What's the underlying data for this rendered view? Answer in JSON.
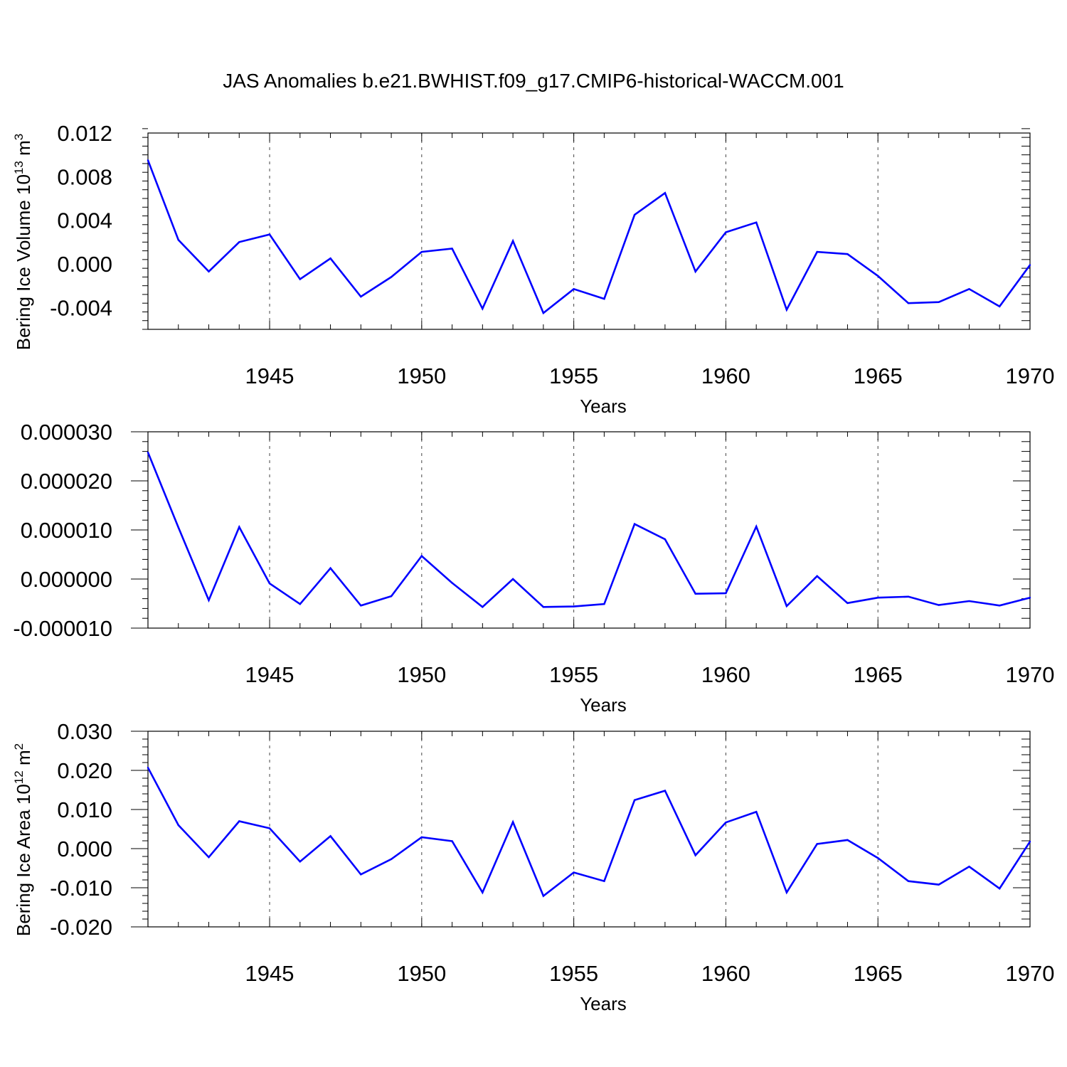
{
  "title": "JAS Anomalies b.e21.BWHIST.f09_g17.CMIP6-historical-WACCM.001",
  "colors": {
    "series": "#0000ff",
    "axis": "#000000",
    "grid": "#444444"
  },
  "chart_data": [
    {
      "type": "line",
      "title": "",
      "xlabel": "Years",
      "ylabel": {
        "text": "Bering Ice Volume 10",
        "exp": "13",
        "unit": " m",
        "unit_exp": "3"
      },
      "x": [
        1941,
        1942,
        1943,
        1944,
        1945,
        1946,
        1947,
        1948,
        1949,
        1950,
        1951,
        1952,
        1953,
        1954,
        1955,
        1956,
        1957,
        1958,
        1959,
        1960,
        1961,
        1962,
        1963,
        1964,
        1965,
        1966,
        1967,
        1968,
        1969,
        1970
      ],
      "series": [
        {
          "values": [
            0.0095,
            0.0022,
            -0.0007,
            0.002,
            0.0027,
            -0.0014,
            0.0005,
            -0.003,
            -0.0012,
            0.0011,
            0.0014,
            -0.0041,
            0.0021,
            -0.0045,
            -0.0023,
            -0.0032,
            0.0045,
            0.0065,
            -0.0007,
            0.0029,
            0.0038,
            -0.0042,
            0.0011,
            0.0009,
            -0.0011,
            -0.0036,
            -0.0035,
            -0.0023,
            -0.0039,
            -0.0001
          ]
        }
      ],
      "xlim": [
        1941,
        1970
      ],
      "ylim": [
        -0.006,
        0.012
      ],
      "xticks": [
        1945,
        1950,
        1955,
        1960,
        1965,
        1970
      ],
      "xtick_labels": [
        "1945",
        "1950",
        "1955",
        "1960",
        "1965",
        "1970"
      ],
      "yticks": [
        -0.004,
        0.0,
        0.004,
        0.008,
        0.012
      ],
      "ytick_labels": [
        "-0.004",
        "0.000",
        "0.004",
        "0.008",
        "0.012"
      ],
      "minor_x_step": 1,
      "minor_y_step": 0.0008,
      "grid": "vertical dashed at major x ticks"
    },
    {
      "type": "line",
      "title": "",
      "xlabel": "Years",
      "ylabel": null,
      "x": [
        1941,
        1942,
        1943,
        1944,
        1945,
        1946,
        1947,
        1948,
        1949,
        1950,
        1951,
        1952,
        1953,
        1954,
        1955,
        1956,
        1957,
        1958,
        1959,
        1960,
        1961,
        1962,
        1963,
        1964,
        1965,
        1966,
        1967,
        1968,
        1969,
        1970
      ],
      "series": [
        {
          "values": [
            2.58e-05,
            1.05e-05,
            -4.3e-06,
            1.06e-05,
            -9e-07,
            -5.1e-06,
            2.2e-06,
            -5.4e-06,
            -3.5e-06,
            4.7e-06,
            -8e-07,
            -5.7e-06,
            0.0,
            -5.7e-06,
            -5.6e-06,
            -5.1e-06,
            1.12e-05,
            8.1e-06,
            -3e-06,
            -2.9e-06,
            1.07e-05,
            -5.5e-06,
            6e-07,
            -4.9e-06,
            -3.8e-06,
            -3.6e-06,
            -5.3e-06,
            -4.5e-06,
            -5.4e-06,
            -3.8e-06
          ]
        }
      ],
      "xlim": [
        1941,
        1970
      ],
      "ylim": [
        -1e-05,
        3e-05
      ],
      "xticks": [
        1945,
        1950,
        1955,
        1960,
        1965,
        1970
      ],
      "xtick_labels": [
        "1945",
        "1950",
        "1955",
        "1960",
        "1965",
        "1970"
      ],
      "yticks": [
        -1e-05,
        0.0,
        1e-05,
        2e-05,
        3e-05
      ],
      "ytick_labels": [
        "-0.000010",
        "0.000000",
        "0.000010",
        "0.000020",
        "0.000030"
      ],
      "minor_x_step": 1,
      "minor_y_step": 2e-06,
      "grid": "vertical dashed at major x ticks"
    },
    {
      "type": "line",
      "title": "",
      "xlabel": "Years",
      "ylabel": {
        "text": "Bering Ice Area 10",
        "exp": "12",
        "unit": " m",
        "unit_exp": "2"
      },
      "x": [
        1941,
        1942,
        1943,
        1944,
        1945,
        1946,
        1947,
        1948,
        1949,
        1950,
        1951,
        1952,
        1953,
        1954,
        1955,
        1956,
        1957,
        1958,
        1959,
        1960,
        1961,
        1962,
        1963,
        1964,
        1965,
        1966,
        1967,
        1968,
        1969,
        1970
      ],
      "series": [
        {
          "values": [
            0.0207,
            0.006,
            -0.0022,
            0.007,
            0.0052,
            -0.0033,
            0.0032,
            -0.0066,
            -0.0027,
            0.0029,
            0.0019,
            -0.0112,
            0.0068,
            -0.0121,
            -0.0061,
            -0.0083,
            0.0124,
            0.0148,
            -0.0017,
            0.0067,
            0.0094,
            -0.0112,
            0.0012,
            0.0022,
            -0.0024,
            -0.0083,
            -0.0092,
            -0.0046,
            -0.0102,
            0.0018
          ]
        }
      ],
      "xlim": [
        1941,
        1970
      ],
      "ylim": [
        -0.02,
        0.03
      ],
      "xticks": [
        1945,
        1950,
        1955,
        1960,
        1965,
        1970
      ],
      "xtick_labels": [
        "1945",
        "1950",
        "1955",
        "1960",
        "1965",
        "1970"
      ],
      "yticks": [
        -0.02,
        -0.01,
        0.0,
        0.01,
        0.02,
        0.03
      ],
      "ytick_labels": [
        "-0.020",
        "-0.010",
        "0.000",
        "0.010",
        "0.020",
        "0.030"
      ],
      "minor_x_step": 1,
      "minor_y_step": 0.002,
      "grid": "vertical dashed at major x ticks"
    }
  ]
}
